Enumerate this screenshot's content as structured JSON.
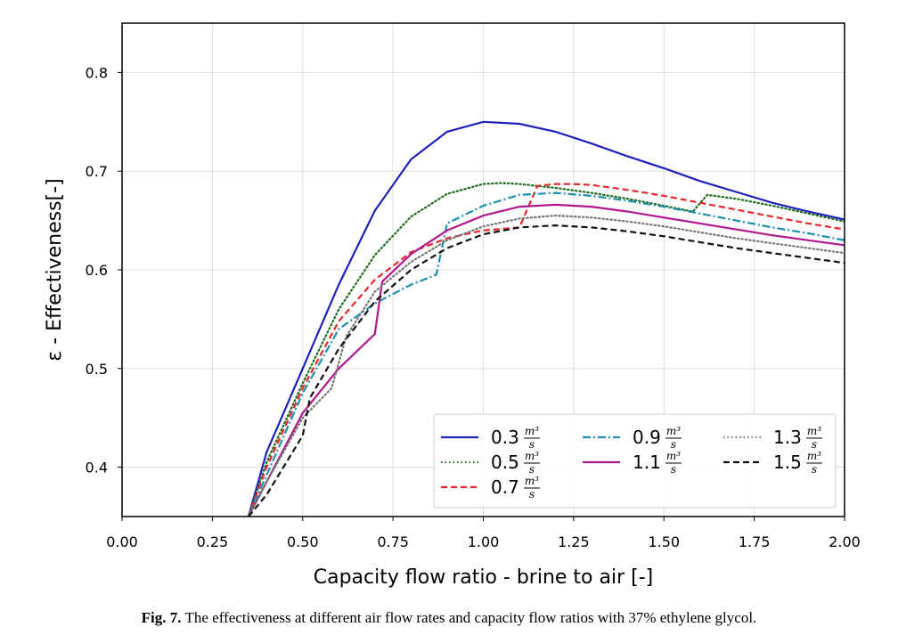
{
  "chart_data": {
    "type": "line",
    "title": "",
    "xlabel": "Capacity flow ratio - brine to air [-]",
    "ylabel": "ε - Effectiveness[-]",
    "xlim": [
      0.0,
      2.0
    ],
    "ylim": [
      0.35,
      0.85
    ],
    "xticks": [
      "0.00",
      "0.25",
      "0.50",
      "0.75",
      "1.00",
      "1.25",
      "1.50",
      "1.75",
      "2.00"
    ],
    "yticks": [
      "0.4",
      "0.5",
      "0.6",
      "0.7",
      "0.8"
    ],
    "grid": true,
    "legend_position": "lower-right",
    "legend_unit": {
      "numerator": "m³",
      "denominator": "s"
    },
    "series": [
      {
        "name": "0.3",
        "color": "#1f1fbf",
        "dash": "solid",
        "x": [
          0.35,
          0.4,
          0.5,
          0.6,
          0.7,
          0.8,
          0.9,
          1.0,
          1.1,
          1.2,
          1.3,
          1.4,
          1.5,
          1.6,
          1.7,
          1.8,
          1.9,
          2.0
        ],
        "y": [
          0.35,
          0.415,
          0.5,
          0.585,
          0.66,
          0.712,
          0.74,
          0.75,
          0.748,
          0.74,
          0.728,
          0.715,
          0.703,
          0.69,
          0.679,
          0.668,
          0.659,
          0.651
        ]
      },
      {
        "name": "0.5",
        "color": "#1f6e1f",
        "dash": "dotted",
        "x": [
          0.35,
          0.4,
          0.5,
          0.6,
          0.7,
          0.8,
          0.9,
          1.0,
          1.05,
          1.1,
          1.2,
          1.3,
          1.4,
          1.5,
          1.58,
          1.62,
          1.7,
          1.8,
          1.9,
          2.0
        ],
        "y": [
          0.35,
          0.405,
          0.485,
          0.56,
          0.615,
          0.654,
          0.677,
          0.687,
          0.688,
          0.687,
          0.683,
          0.678,
          0.672,
          0.665,
          0.659,
          0.676,
          0.672,
          0.665,
          0.657,
          0.649
        ]
      },
      {
        "name": "0.7",
        "color": "#e8262b",
        "dash": "dashed",
        "x": [
          0.35,
          0.4,
          0.5,
          0.6,
          0.7,
          0.8,
          0.9,
          1.0,
          1.1,
          1.15,
          1.2,
          1.25,
          1.3,
          1.4,
          1.5,
          1.6,
          1.7,
          1.8,
          1.9,
          2.0
        ],
        "y": [
          0.35,
          0.4,
          0.48,
          0.548,
          0.59,
          0.618,
          0.632,
          0.64,
          0.643,
          0.685,
          0.687,
          0.687,
          0.686,
          0.681,
          0.675,
          0.668,
          0.661,
          0.654,
          0.647,
          0.641
        ]
      },
      {
        "name": "0.9",
        "color": "#1a8fb0",
        "dash": "dashdot",
        "x": [
          0.35,
          0.4,
          0.5,
          0.6,
          0.7,
          0.8,
          0.87,
          0.9,
          1.0,
          1.1,
          1.2,
          1.3,
          1.4,
          1.5,
          1.6,
          1.7,
          1.8,
          1.9,
          2.0
        ],
        "y": [
          0.35,
          0.392,
          0.475,
          0.54,
          0.566,
          0.585,
          0.595,
          0.647,
          0.665,
          0.676,
          0.678,
          0.675,
          0.67,
          0.664,
          0.657,
          0.65,
          0.643,
          0.637,
          0.63
        ]
      },
      {
        "name": "1.1",
        "color": "#b0188f",
        "dash": "solid",
        "x": [
          0.35,
          0.4,
          0.5,
          0.6,
          0.7,
          0.72,
          0.8,
          0.9,
          1.0,
          1.1,
          1.2,
          1.3,
          1.4,
          1.5,
          1.6,
          1.7,
          1.8,
          1.9,
          2.0
        ],
        "y": [
          0.35,
          0.385,
          0.455,
          0.5,
          0.535,
          0.588,
          0.616,
          0.64,
          0.655,
          0.664,
          0.666,
          0.664,
          0.659,
          0.653,
          0.647,
          0.641,
          0.635,
          0.63,
          0.625
        ]
      },
      {
        "name": "1.3",
        "color": "#777777",
        "dash": "dotted",
        "x": [
          0.35,
          0.4,
          0.5,
          0.58,
          0.62,
          0.7,
          0.8,
          0.9,
          1.0,
          1.1,
          1.2,
          1.3,
          1.4,
          1.5,
          1.6,
          1.7,
          1.8,
          1.9,
          2.0
        ],
        "y": [
          0.35,
          0.385,
          0.45,
          0.48,
          0.532,
          0.578,
          0.608,
          0.63,
          0.644,
          0.652,
          0.655,
          0.653,
          0.649,
          0.644,
          0.638,
          0.632,
          0.627,
          0.622,
          0.617
        ]
      },
      {
        "name": "1.5",
        "color": "#111111",
        "dash": "dashed",
        "x": [
          0.35,
          0.4,
          0.5,
          0.52,
          0.6,
          0.7,
          0.8,
          0.9,
          1.0,
          1.1,
          1.2,
          1.3,
          1.4,
          1.5,
          1.6,
          1.7,
          1.8,
          1.9,
          2.0
        ],
        "y": [
          0.35,
          0.372,
          0.432,
          0.47,
          0.52,
          0.568,
          0.6,
          0.622,
          0.636,
          0.643,
          0.645,
          0.643,
          0.639,
          0.634,
          0.628,
          0.622,
          0.617,
          0.612,
          0.607
        ]
      }
    ]
  },
  "caption": {
    "label": "Fig. 7.",
    "text": " The effectiveness at different air flow rates and capacity flow ratios with 37% ethylene glycol."
  }
}
